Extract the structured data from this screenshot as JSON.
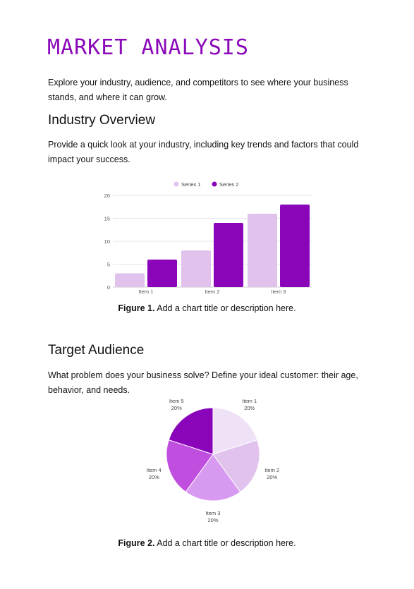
{
  "doc": {
    "title": "MARKET ANALYSIS",
    "intro": "Explore your industry, audience, and competitors to see where your business stands, and where it can grow.",
    "sections": [
      {
        "heading": "Industry Overview",
        "body": "Provide a quick look at your industry, including key trends and factors that could impact your success.",
        "caption_label": "Figure 1.",
        "caption_text": " Add a chart title or description here."
      },
      {
        "heading": "Target Audience",
        "body": "What problem does your business solve? Define your ideal customer: their age, behavior, and needs.",
        "caption_label": "Figure 2.",
        "caption_text": " Add a chart title or description here."
      }
    ]
  },
  "chart_data": [
    {
      "type": "bar",
      "categories": [
        "Item 1",
        "Item 2",
        "Item 3"
      ],
      "series": [
        {
          "name": "Series 1",
          "values": [
            3,
            8,
            16
          ],
          "color": "#e1c2ec"
        },
        {
          "name": "Series 2",
          "values": [
            6,
            14,
            18
          ],
          "color": "#8a04ba"
        }
      ],
      "ylim": [
        0,
        20
      ],
      "yticks": [
        0,
        5,
        10,
        15,
        20
      ],
      "grid": true,
      "legend": "top-center"
    },
    {
      "type": "pie",
      "labels": [
        "Item 1",
        "Item 2",
        "Item 3",
        "Item 4",
        "Item 5"
      ],
      "values": [
        20,
        20,
        20,
        20,
        20
      ],
      "value_labels": [
        "20%",
        "20%",
        "20%",
        "20%",
        "20%"
      ],
      "colors": [
        "#f0e2f6",
        "#e1c2ec",
        "#d79af0",
        "#c04fe0",
        "#8a04ba"
      ]
    }
  ]
}
